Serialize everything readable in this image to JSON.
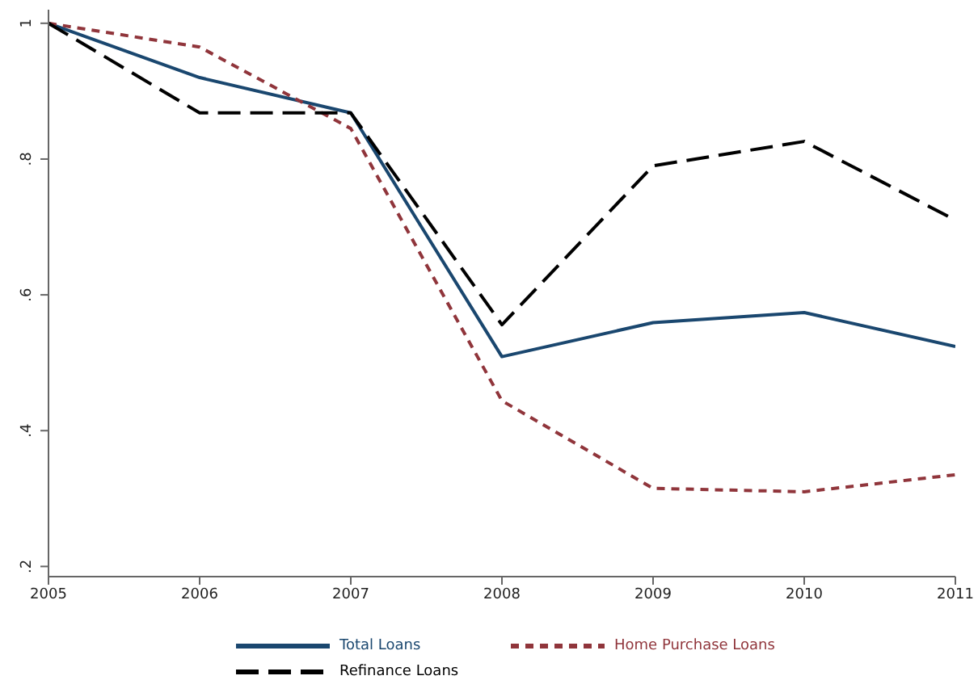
{
  "chart_data": {
    "type": "line",
    "x": [
      2005,
      2006,
      2007,
      2008,
      2009,
      2010,
      2011
    ],
    "series": [
      {
        "name": "Total Loans",
        "color": "#1a476f",
        "line_style": "solid",
        "values": [
          1.0,
          0.92,
          0.868,
          0.509,
          0.559,
          0.574,
          0.524
        ]
      },
      {
        "name": "Home Purchase Loans",
        "color": "#90353b",
        "line_style": "dashed",
        "values": [
          1.0,
          0.965,
          0.845,
          0.444,
          0.315,
          0.31,
          0.335
        ]
      },
      {
        "name": "Refinance Loans",
        "color": "#000000",
        "line_style": "longdash",
        "values": [
          1.0,
          0.868,
          0.868,
          0.556,
          0.79,
          0.826,
          0.71
        ]
      }
    ],
    "xlim": [
      2005,
      2011
    ],
    "xticks": [
      2005,
      2006,
      2007,
      2008,
      2009,
      2010,
      2011
    ],
    "ylim": [
      0.185,
      1.02
    ],
    "yticks": [
      {
        "value": 0.2,
        "label": ".2"
      },
      {
        "value": 0.4,
        "label": ".4"
      },
      {
        "value": 0.6,
        "label": ".6"
      },
      {
        "value": 0.8,
        "label": ".8"
      },
      {
        "value": 1,
        "label": "1"
      }
    ],
    "grid": false,
    "legend": "bottom",
    "marker": "none"
  }
}
